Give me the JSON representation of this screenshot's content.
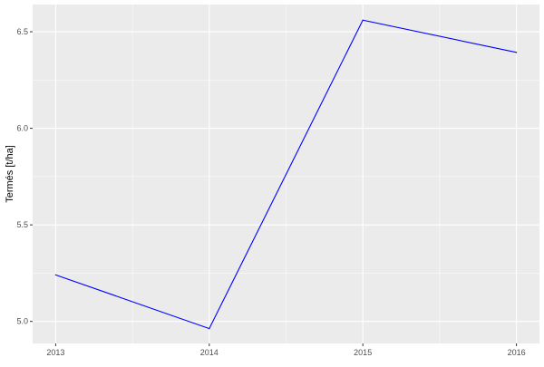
{
  "chart_data": {
    "type": "line",
    "title": "",
    "xlabel": "",
    "ylabel": "Termés [t/ha]",
    "x": [
      2013,
      2014,
      2015,
      2016
    ],
    "series": [
      {
        "values": [
          5.241,
          4.963,
          6.56,
          6.393
        ],
        "color": "#0000FF"
      }
    ],
    "xlim": [
      2012.85,
      2016.15
    ],
    "ylim": [
      4.886,
      6.641
    ],
    "x_ticks": [
      2013,
      2014,
      2015,
      2016
    ],
    "x_tick_labels": [
      "2013",
      "2014",
      "2015",
      "2016"
    ],
    "y_ticks": [
      5.0,
      5.5,
      6.0,
      6.5
    ],
    "y_tick_labels": [
      "5.0",
      "5.5",
      "6.0",
      "6.5"
    ],
    "grid": true,
    "panel_background": "#EBEBEB",
    "grid_color": "#FFFFFF"
  }
}
